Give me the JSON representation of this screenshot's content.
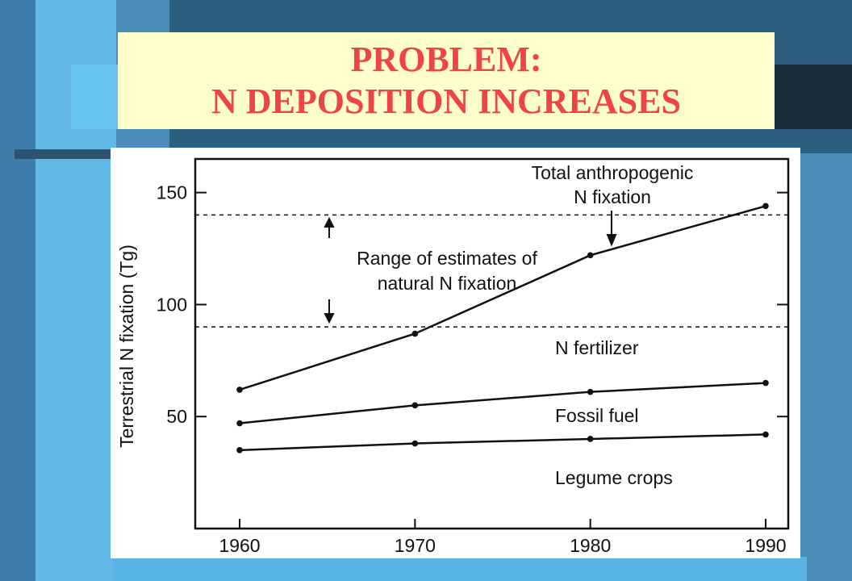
{
  "slide": {
    "title_line1": "PROBLEM:",
    "title_line2": "N DEPOSITION INCREASES",
    "title_color": "#ee4444",
    "title_background": "#ffffcc"
  },
  "chart_data": {
    "type": "line",
    "title": "",
    "xlabel": "",
    "ylabel": "Terrestrial N fixation (Tg)",
    "x": [
      1960,
      1970,
      1980,
      1990
    ],
    "x_ticks": [
      "1960",
      "1970",
      "1980",
      "1990"
    ],
    "y_ticks": [
      "50",
      "100",
      "150"
    ],
    "xlim": [
      1960,
      1990
    ],
    "ylim": [
      0,
      165
    ],
    "grid": false,
    "series": [
      {
        "name": "Total anthropogenic N fixation",
        "values": [
          62,
          87,
          122,
          144
        ]
      },
      {
        "name": "N fertilizer",
        "values": [
          47,
          55,
          61,
          65
        ]
      },
      {
        "name": "Fossil fuel",
        "values": [
          35,
          38,
          40,
          42
        ]
      }
    ],
    "reference_lines": [
      {
        "y": 140
      },
      {
        "y": 90
      }
    ],
    "annotations": {
      "natural_range_line1": "Range of estimates of",
      "natural_range_line2": "natural N fixation",
      "total_line1": "Total anthropogenic",
      "total_line2": "N fixation",
      "fertilizer": "N fertilizer",
      "fossil": "Fossil fuel",
      "legume": "Legume crops"
    }
  }
}
